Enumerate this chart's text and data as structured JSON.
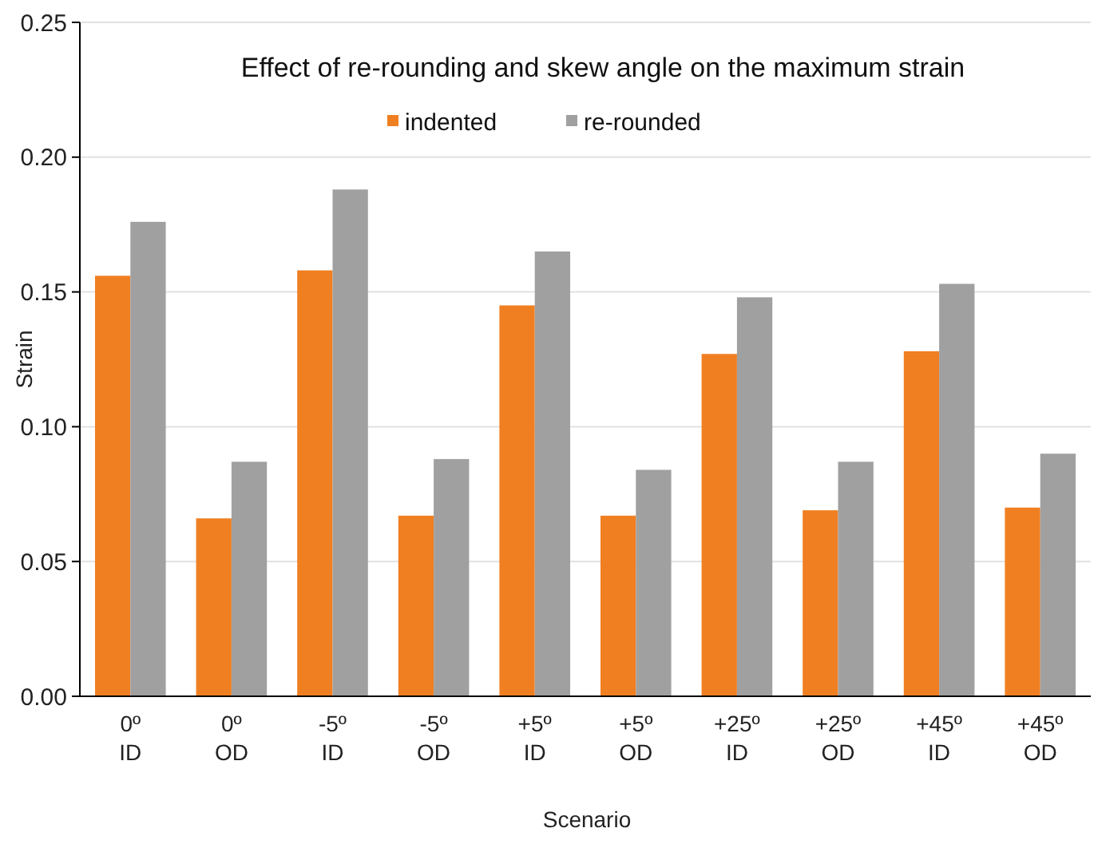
{
  "chart_data": {
    "type": "bar",
    "title": "Effect of re-rounding and skew angle on the maximum strain",
    "xlabel": "Scenario",
    "ylabel": "Strain",
    "categories": [
      "0º ID",
      "0º OD",
      "-5º ID",
      "-5º OD",
      "+5º ID",
      "+5º OD",
      "+25º ID",
      "+25º OD",
      "+45º ID",
      "+45º OD"
    ],
    "series": [
      {
        "name": "indented",
        "color": "#f07f22",
        "values": [
          0.156,
          0.066,
          0.158,
          0.067,
          0.145,
          0.067,
          0.127,
          0.069,
          0.128,
          0.07
        ]
      },
      {
        "name": "re-rounded",
        "color": "#a0a0a0",
        "values": [
          0.176,
          0.087,
          0.188,
          0.088,
          0.165,
          0.084,
          0.148,
          0.087,
          0.153,
          0.09
        ]
      }
    ],
    "ylim": [
      0,
      0.25
    ],
    "yticks": [
      {
        "value": 0,
        "label": "0.00"
      },
      {
        "value": 0.05,
        "label": "0.05"
      },
      {
        "value": 0.1,
        "label": "0.10"
      },
      {
        "value": 0.15,
        "label": "0.15"
      },
      {
        "value": 0.2,
        "label": "0.20"
      },
      {
        "value": 0.25,
        "label": "0.25"
      }
    ],
    "grid": "y",
    "legend": "top"
  }
}
